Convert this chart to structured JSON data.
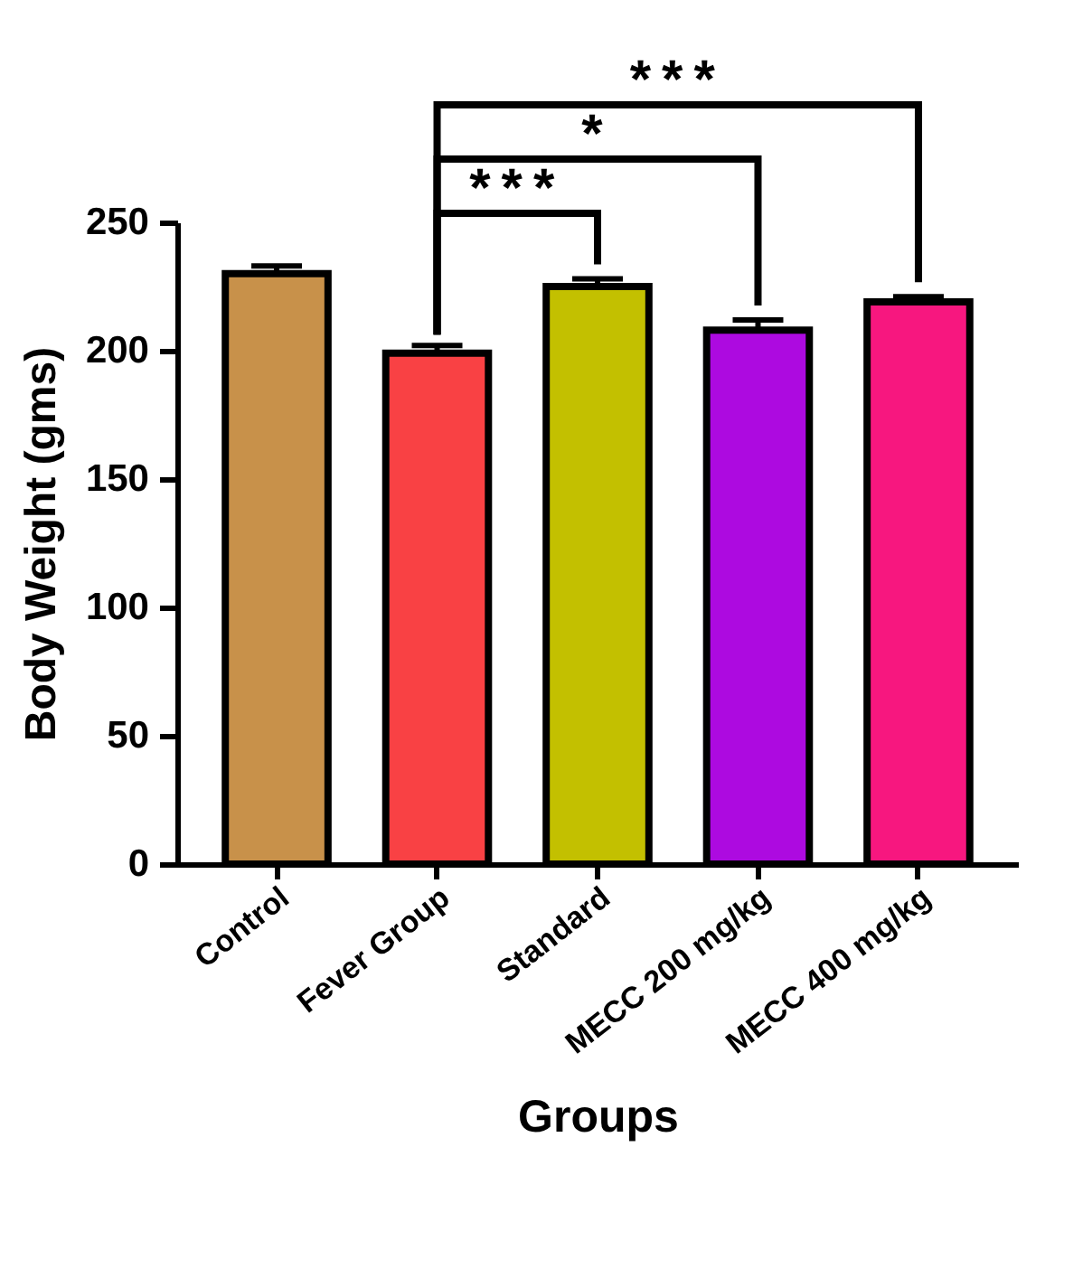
{
  "chart_data": {
    "type": "bar",
    "xlabel": "Groups",
    "ylabel": "Body Weight (gms)",
    "categories": [
      "Control",
      "Fever Group",
      "Standard",
      "MECC 200 mg/kg",
      "MECC 400 mg/kg"
    ],
    "values": [
      230,
      199,
      225,
      208,
      219
    ],
    "colors": [
      "#c8914a",
      "#f94144",
      "#c3c000",
      "#ad0ae0",
      "#f7177f"
    ],
    "errors": [
      3,
      3,
      3,
      4,
      2
    ],
    "ylim": [
      0,
      250
    ],
    "yticks": [
      0,
      50,
      100,
      150,
      200,
      250
    ],
    "grid": false,
    "annotations": [
      "***",
      "*",
      "***"
    ]
  }
}
